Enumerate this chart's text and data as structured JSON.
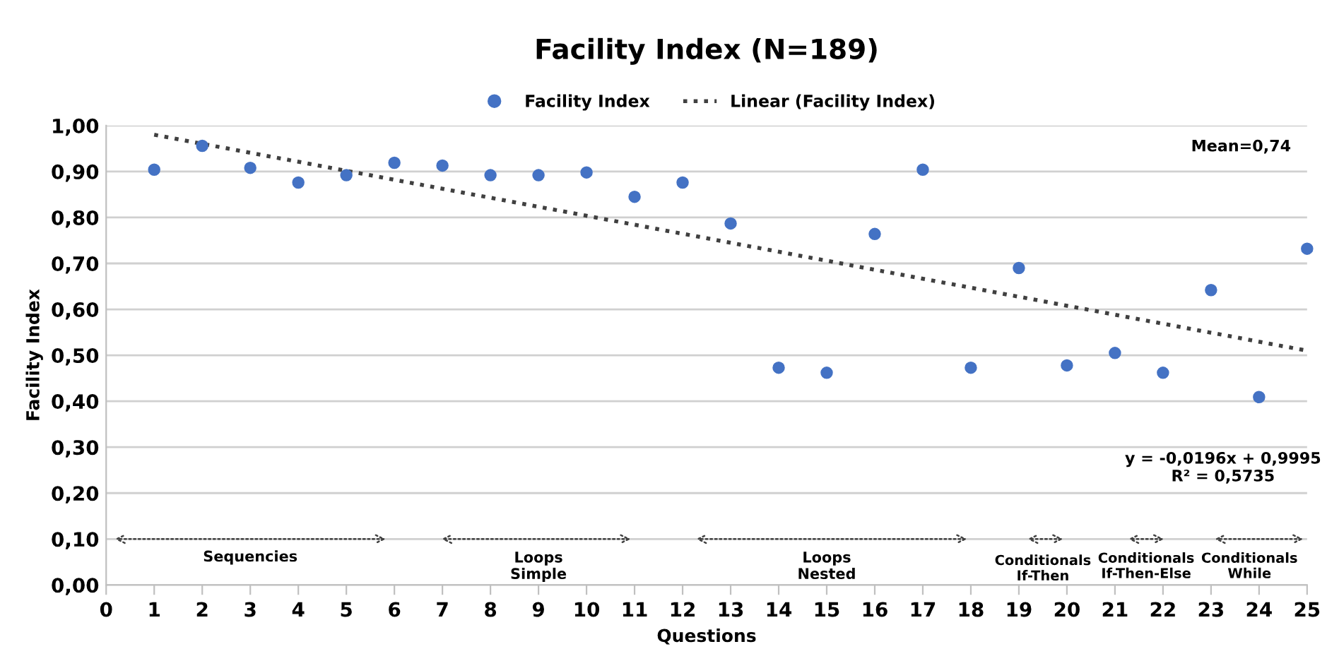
{
  "chart_data": {
    "type": "scatter",
    "title": "Facility Index (N=189)",
    "xlabel": "Questions",
    "ylabel": "Facility Index",
    "x": [
      1,
      2,
      3,
      4,
      5,
      6,
      7,
      8,
      9,
      10,
      11,
      12,
      13,
      14,
      15,
      16,
      17,
      18,
      19,
      20,
      21,
      22,
      23,
      24,
      25
    ],
    "series": [
      {
        "name": "Facility Index",
        "color": "#4472c4",
        "marker": "circle",
        "values": [
          0.904,
          0.956,
          0.908,
          0.876,
          0.892,
          0.919,
          0.913,
          0.892,
          0.892,
          0.898,
          0.845,
          0.876,
          0.787,
          0.473,
          0.462,
          0.764,
          0.904,
          0.473,
          0.69,
          0.478,
          0.505,
          0.462,
          0.642,
          0.409,
          0.732
        ]
      },
      {
        "name": "Linear (Facility Index)",
        "type": "line",
        "color": "#404040",
        "line_style": "dotted",
        "x": [
          1,
          25
        ],
        "values": [
          0.98,
          0.51
        ]
      }
    ],
    "xlim": [
      0,
      25
    ],
    "xticks": [
      0,
      1,
      2,
      3,
      4,
      5,
      6,
      7,
      8,
      9,
      10,
      11,
      12,
      13,
      14,
      15,
      16,
      17,
      18,
      19,
      20,
      21,
      22,
      23,
      24,
      25
    ],
    "ylim": [
      0,
      1
    ],
    "yticks": [
      {
        "value": 0,
        "label": "0,00"
      },
      {
        "value": 0.1,
        "label": "0,10"
      },
      {
        "value": 0.2,
        "label": "0,20"
      },
      {
        "value": 0.3,
        "label": "0,30"
      },
      {
        "value": 0.4,
        "label": "0,40"
      },
      {
        "value": 0.5,
        "label": "0,50"
      },
      {
        "value": 0.6,
        "label": "0,60"
      },
      {
        "value": 0.7,
        "label": "0,70"
      },
      {
        "value": 0.8,
        "label": "0,80"
      },
      {
        "value": 0.9,
        "label": "0,90"
      },
      {
        "value": 1,
        "label": "1,00"
      }
    ],
    "annotations": [
      "Mean=0,74",
      "y = -0,0196x + 0,9995\nR² = 0,5735",
      "Sequencies",
      "Loops\nSimple",
      "Loops\nNested",
      "Conditionals\nIf-Then",
      "Conditionals\nIf-Then-Else",
      "Conditionals\nWhile"
    ],
    "grid": "y",
    "legend": "top"
  }
}
